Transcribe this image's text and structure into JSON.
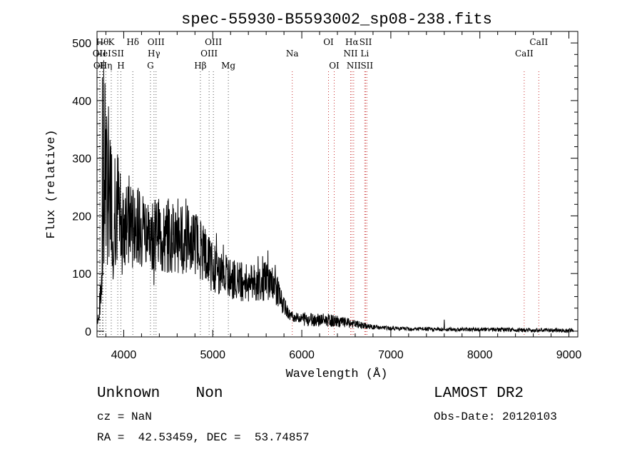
{
  "chart_data": {
    "type": "line",
    "title": "spec-55930-B5593002_sp08-238.fits",
    "xlabel": "Wavelength (Å)",
    "ylabel": "Flux (relative)",
    "xlim": [
      3700,
      9100
    ],
    "ylim": [
      -10,
      520
    ],
    "xticks": [
      4000,
      5000,
      6000,
      7000,
      8000,
      9000
    ],
    "yticks": [
      0,
      100,
      200,
      300,
      400,
      500
    ],
    "grid": false,
    "line_color": "#000000",
    "marker_color": "#c83030",
    "series_anchors": [
      [
        3700,
        20
      ],
      [
        3720,
        30
      ],
      [
        3740,
        60
      ],
      [
        3760,
        120
      ],
      [
        3780,
        220
      ],
      [
        3800,
        250
      ],
      [
        3820,
        240
      ],
      [
        3850,
        230
      ],
      [
        3880,
        220
      ],
      [
        3900,
        215
      ],
      [
        3950,
        210
      ],
      [
        4000,
        205
      ],
      [
        4050,
        200
      ],
      [
        4100,
        198
      ],
      [
        4150,
        195
      ],
      [
        4200,
        193
      ],
      [
        4250,
        190
      ],
      [
        4300,
        185
      ],
      [
        4350,
        182
      ],
      [
        4400,
        180
      ],
      [
        4500,
        178
      ],
      [
        4600,
        175
      ],
      [
        4700,
        172
      ],
      [
        4800,
        165
      ],
      [
        4900,
        150
      ],
      [
        5000,
        120
      ],
      [
        5100,
        108
      ],
      [
        5200,
        100
      ],
      [
        5300,
        95
      ],
      [
        5400,
        90
      ],
      [
        5500,
        92
      ],
      [
        5600,
        95
      ],
      [
        5700,
        85
      ],
      [
        5750,
        65
      ],
      [
        5800,
        45
      ],
      [
        5850,
        30
      ],
      [
        5900,
        25
      ],
      [
        6000,
        22
      ],
      [
        6200,
        20
      ],
      [
        6400,
        17
      ],
      [
        6600,
        12
      ],
      [
        6800,
        7
      ],
      [
        7000,
        5
      ],
      [
        7500,
        3
      ],
      [
        7600,
        3
      ],
      [
        8000,
        3
      ],
      [
        8500,
        2
      ],
      [
        9000,
        1
      ],
      [
        9050,
        1
      ]
    ],
    "spikes": [
      [
        3760,
        440
      ],
      [
        3775,
        470
      ],
      [
        3790,
        430
      ],
      [
        3800,
        350
      ],
      [
        3815,
        320
      ],
      [
        3830,
        390
      ],
      [
        3845,
        300
      ],
      [
        3860,
        140
      ],
      [
        3880,
        90
      ],
      [
        3900,
        300
      ],
      [
        3920,
        260
      ],
      [
        3950,
        250
      ],
      [
        3990,
        240
      ],
      [
        4030,
        250
      ],
      [
        4060,
        270
      ],
      [
        4100,
        110
      ],
      [
        4180,
        230
      ],
      [
        4280,
        190
      ],
      [
        4340,
        80
      ],
      [
        4390,
        120
      ],
      [
        4500,
        230
      ],
      [
        4610,
        230
      ],
      [
        4700,
        230
      ],
      [
        4760,
        110
      ],
      [
        4860,
        90
      ],
      [
        4980,
        70
      ],
      [
        5040,
        170
      ],
      [
        5120,
        150
      ],
      [
        5230,
        120
      ],
      [
        5430,
        115
      ],
      [
        5510,
        130
      ],
      [
        5560,
        130
      ],
      [
        5620,
        140
      ],
      [
        5700,
        115
      ],
      [
        7600,
        20
      ]
    ],
    "line_markers": [
      {
        "wavelength": 3727,
        "label": "OII",
        "row": 1
      },
      {
        "wavelength": 3736,
        "label": "OII",
        "row": 2
      },
      {
        "wavelength": 3760,
        "label": "Hθ",
        "row": 0
      },
      {
        "wavelength": 3770,
        "label": "HeI",
        "row": 1
      },
      {
        "wavelength": 3800,
        "label": "Hη",
        "row": 2
      },
      {
        "wavelength": 3860,
        "label": "K",
        "row": 0
      },
      {
        "wavelength": 3933,
        "label": "SII",
        "row": 1
      },
      {
        "wavelength": 3968,
        "label": "H",
        "row": 2
      },
      {
        "wavelength": 4102,
        "label": "Hδ",
        "row": 0
      },
      {
        "wavelength": 4300,
        "label": "G",
        "row": 2
      },
      {
        "wavelength": 4340,
        "label": "Hγ",
        "row": 1
      },
      {
        "wavelength": 4363,
        "label": "OIII",
        "row": 0
      },
      {
        "wavelength": 4861,
        "label": "Hβ",
        "row": 2
      },
      {
        "wavelength": 4959,
        "label": "OIII",
        "row": 1
      },
      {
        "wavelength": 5007,
        "label": "OIII",
        "row": 0
      },
      {
        "wavelength": 5175,
        "label": "Mg",
        "row": 2
      },
      {
        "wavelength": 5893,
        "label": "Na",
        "row": 1
      },
      {
        "wavelength": 6300,
        "label": "OI",
        "row": 0
      },
      {
        "wavelength": 6364,
        "label": "OI",
        "row": 2
      },
      {
        "wavelength": 6548,
        "label": "NII",
        "row": 1
      },
      {
        "wavelength": 6563,
        "label": "Hα",
        "row": 0
      },
      {
        "wavelength": 6583,
        "label": "NII",
        "row": 2
      },
      {
        "wavelength": 6717,
        "label": "SII",
        "row": 0
      },
      {
        "wavelength": 6707,
        "label": "Li",
        "row": 1
      },
      {
        "wavelength": 6731,
        "label": "SII",
        "row": 2
      },
      {
        "wavelength": 8498,
        "label": "CaII",
        "row": 1
      },
      {
        "wavelength": 8662,
        "label": "CaII",
        "row": 0
      }
    ]
  },
  "info": {
    "class_label": "Unknown    Non",
    "survey": "LAMOST DR2",
    "redshift": "cz = NaN",
    "obs_date": "Obs-Date: 20120103",
    "coords": "RA =  42.53459, DEC =  53.74857"
  }
}
